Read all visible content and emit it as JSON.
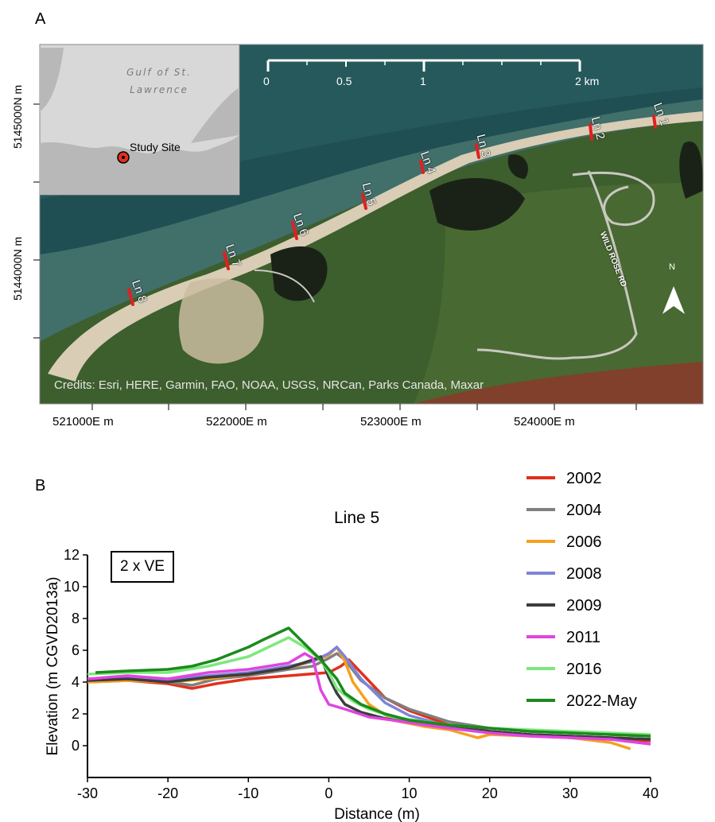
{
  "panel_labels": {
    "a": "A",
    "b": "B"
  },
  "map": {
    "credit": "Credits: Esri, HERE, Garmin, FAO, NOAA, USGS, NRCan, Parks Canada, Maxar",
    "northing_labels": [
      "5145000N m",
      "5144000N m"
    ],
    "easting_labels": [
      "521000E m",
      "522000E m",
      "523000E m",
      "524000E m"
    ],
    "scale_bar": {
      "labels": [
        "0",
        "0.5",
        "1",
        "2 km"
      ]
    },
    "inset": {
      "water_label": "Gulf of St. Lawrence",
      "site_label": "Study Site"
    },
    "transects": [
      "Ln 1",
      "Ln 2",
      "Ln 3",
      "Ln 4",
      "Ln 5",
      "Ln 6",
      "Ln 7",
      "Ln 8"
    ],
    "road_label": "WILD ROSE RD",
    "north_arrow": "N",
    "colors": {
      "water": "#1f4f52",
      "land": "#3d5e2d",
      "sand": "#d9cdb5",
      "transect": "#e02020"
    }
  },
  "chart_data": {
    "type": "line",
    "title": "Line 5",
    "annotation": "2 x VE",
    "xlabel": "Distance (m)",
    "ylabel": "Elevation (m CGVD2013a)",
    "xlim": [
      -30,
      40
    ],
    "ylim": [
      -2,
      12
    ],
    "xticks": [
      -30,
      -20,
      -10,
      0,
      10,
      20,
      30,
      40
    ],
    "yticks": [
      0,
      2,
      4,
      6,
      8,
      10,
      12
    ],
    "legend_position": "top-right outside",
    "series": [
      {
        "name": "2002",
        "color": "#e0311c",
        "x": [
          -30,
          -25,
          -20,
          -17,
          -14,
          -10,
          -5,
          0,
          1.5,
          2.5,
          4,
          7,
          10,
          15,
          20,
          25,
          30,
          35,
          40
        ],
        "y": [
          4.0,
          4.1,
          3.9,
          3.6,
          3.9,
          4.2,
          4.4,
          4.6,
          5.0,
          5.4,
          4.6,
          3.0,
          2.2,
          1.3,
          0.9,
          0.7,
          0.5,
          0.4,
          0.3
        ]
      },
      {
        "name": "2004",
        "color": "#808080",
        "x": [
          -30,
          -25,
          -20,
          -17,
          -14,
          -10,
          -5,
          -2,
          0,
          1,
          2,
          4,
          7,
          10,
          15,
          20,
          25,
          30,
          35,
          40
        ],
        "y": [
          4.1,
          4.2,
          4.0,
          3.8,
          4.2,
          4.4,
          4.8,
          5.0,
          5.5,
          5.8,
          5.4,
          4.1,
          3.0,
          2.3,
          1.5,
          1.1,
          0.9,
          0.8,
          0.7,
          0.6
        ]
      },
      {
        "name": "2006",
        "color": "#f5a020",
        "x": [
          -30,
          -25,
          -20,
          -15,
          -10,
          -5,
          -2,
          0,
          1,
          2,
          3,
          5,
          8,
          12,
          15,
          18.5,
          20,
          25,
          30,
          35,
          37.5
        ],
        "y": [
          4.0,
          4.1,
          4.0,
          4.2,
          4.5,
          4.9,
          5.3,
          5.7,
          6.2,
          5.3,
          4.0,
          2.6,
          1.6,
          1.2,
          1.0,
          0.5,
          0.7,
          0.6,
          0.5,
          0.2,
          -0.2
        ]
      },
      {
        "name": "2008",
        "color": "#7e84d8",
        "x": [
          -30,
          -25,
          -20,
          -15,
          -10,
          -5,
          -2,
          0,
          1,
          2,
          4,
          7,
          10,
          15,
          20,
          25,
          30,
          35,
          40
        ],
        "y": [
          4.2,
          4.3,
          4.1,
          4.4,
          4.6,
          5.0,
          5.3,
          5.8,
          6.2,
          5.6,
          4.2,
          2.7,
          1.9,
          1.2,
          0.9,
          0.7,
          0.6,
          0.5,
          0.4
        ]
      },
      {
        "name": "2009",
        "color": "#3c3c3c",
        "x": [
          -30,
          -25,
          -20,
          -15,
          -10,
          -5,
          -2,
          -1,
          0,
          1,
          2,
          4,
          7,
          10,
          15,
          20,
          25,
          30,
          35,
          40
        ],
        "y": [
          4.1,
          4.2,
          4.0,
          4.3,
          4.5,
          4.9,
          5.4,
          5.6,
          4.3,
          3.3,
          2.6,
          2.1,
          1.7,
          1.5,
          1.2,
          0.9,
          0.7,
          0.6,
          0.5,
          0.4
        ]
      },
      {
        "name": "2011",
        "color": "#e045e0",
        "x": [
          -30,
          -25,
          -20,
          -15,
          -10,
          -5,
          -3,
          -2,
          -1,
          0,
          2,
          5,
          8,
          12,
          15,
          20,
          25,
          30,
          35,
          40
        ],
        "y": [
          4.2,
          4.4,
          4.2,
          4.6,
          4.8,
          5.2,
          5.8,
          5.5,
          3.5,
          2.6,
          2.3,
          1.8,
          1.6,
          1.3,
          1.1,
          0.8,
          0.6,
          0.5,
          0.4,
          0.1
        ]
      },
      {
        "name": "2016",
        "color": "#7ee87e",
        "x": [
          -30,
          -25,
          -20,
          -15,
          -10,
          -5,
          -3,
          -1,
          0,
          1,
          3,
          5,
          8,
          12,
          15,
          20,
          25,
          30,
          35,
          40
        ],
        "y": [
          4.5,
          4.6,
          4.6,
          5.0,
          5.6,
          6.8,
          6.2,
          5.4,
          4.6,
          3.6,
          2.8,
          2.3,
          1.8,
          1.5,
          1.3,
          1.1,
          1.0,
          0.9,
          0.8,
          0.7
        ]
      },
      {
        "name": "2022-May",
        "color": "#1b8a1b",
        "x": [
          -29,
          -25,
          -20,
          -17,
          -14,
          -10,
          -8,
          -5,
          -3,
          -1,
          0,
          1,
          2,
          4,
          7,
          10,
          15,
          20,
          25,
          30,
          35,
          40
        ],
        "y": [
          4.6,
          4.7,
          4.8,
          5.0,
          5.4,
          6.2,
          6.7,
          7.4,
          6.4,
          5.4,
          4.8,
          4.2,
          3.3,
          2.6,
          2.0,
          1.6,
          1.3,
          1.1,
          0.9,
          0.8,
          0.7,
          0.6
        ]
      }
    ]
  }
}
